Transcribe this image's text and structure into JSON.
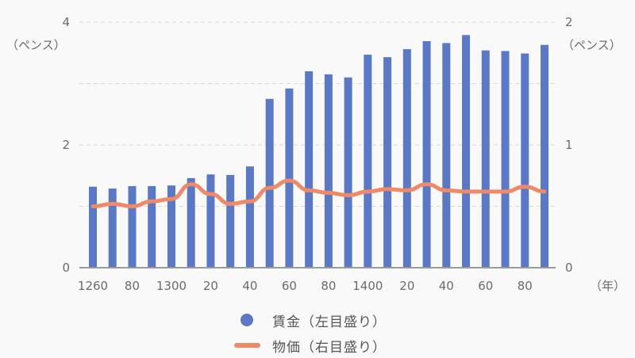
{
  "chart_data": {
    "type": "bar+line",
    "title": "",
    "categories": [
      1260,
      1270,
      1280,
      1290,
      1300,
      1310,
      1320,
      1330,
      1340,
      1350,
      1360,
      1370,
      1380,
      1390,
      1400,
      1410,
      1420,
      1430,
      1440,
      1450,
      1460,
      1470,
      1480,
      1490
    ],
    "x_tick_labels": [
      {
        "at": 1260,
        "label": "1260"
      },
      {
        "at": 1280,
        "label": "80"
      },
      {
        "at": 1300,
        "label": "1300"
      },
      {
        "at": 1320,
        "label": "20"
      },
      {
        "at": 1340,
        "label": "40"
      },
      {
        "at": 1360,
        "label": "60"
      },
      {
        "at": 1380,
        "label": "80"
      },
      {
        "at": 1400,
        "label": "1400"
      },
      {
        "at": 1420,
        "label": "20"
      },
      {
        "at": 1440,
        "label": "40"
      },
      {
        "at": 1460,
        "label": "60"
      },
      {
        "at": 1480,
        "label": "80"
      }
    ],
    "xlabel": "（年）",
    "series": [
      {
        "name": "賃金（左目盛り）",
        "type": "bar",
        "axis": "left",
        "color": "#5b78c4",
        "values": [
          1.32,
          1.29,
          1.33,
          1.33,
          1.34,
          1.46,
          1.52,
          1.51,
          1.65,
          2.75,
          2.92,
          3.2,
          3.15,
          3.1,
          3.47,
          3.43,
          3.56,
          3.69,
          3.66,
          3.79,
          3.54,
          3.53,
          3.49,
          3.63
        ]
      },
      {
        "name": "物価（右目盛り）",
        "type": "line",
        "axis": "right",
        "color": "#ee8a67",
        "values": [
          0.5,
          0.52,
          0.5,
          0.54,
          0.56,
          0.68,
          0.6,
          0.52,
          0.54,
          0.65,
          0.71,
          0.63,
          0.61,
          0.59,
          0.62,
          0.64,
          0.63,
          0.68,
          0.63,
          0.62,
          0.62,
          0.62,
          0.66,
          0.62
        ]
      }
    ],
    "left_axis": {
      "label": "（ペンス）",
      "ticks": [
        0,
        2,
        4
      ],
      "range": [
        0,
        4
      ]
    },
    "right_axis": {
      "label": "（ペンス）",
      "ticks": [
        0,
        1,
        2
      ],
      "range": [
        0,
        2
      ]
    },
    "grid": {
      "horizontal": true,
      "style": "dashed",
      "lines": [
        1,
        2,
        3,
        4
      ]
    },
    "legend_position": "bottom"
  },
  "legend": {
    "items": [
      {
        "label": "賃金（左目盛り）",
        "marker": "dot",
        "color": "#5b78c4"
      },
      {
        "label": "物価（右目盛り）",
        "marker": "line",
        "color": "#ee8a67"
      }
    ]
  },
  "axes": {
    "left_unit": "（ペンス）",
    "right_unit": "（ペンス）",
    "x_unit": "（年）"
  }
}
